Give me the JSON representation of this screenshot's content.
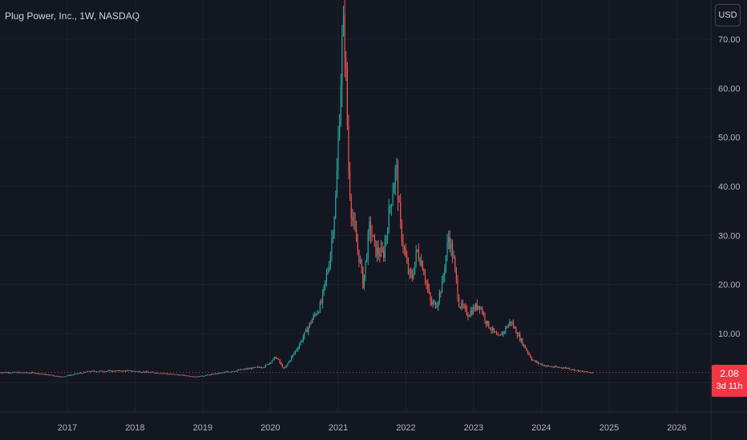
{
  "header": {
    "title": "Plug Power, Inc., 1W, NASDAQ",
    "currency_button": "USD"
  },
  "last_price": {
    "price": "2.08",
    "countdown": "3d 11h",
    "color": "#f23645"
  },
  "colors": {
    "background": "#131722",
    "up": "#26a69a",
    "down": "#ef5350",
    "grid": "#1e222d",
    "text": "#b2b5be"
  },
  "chart_data": {
    "type": "candlestick",
    "title": "Plug Power, Inc., 1W, NASDAQ",
    "interval": "1W",
    "currency": "USD",
    "ylim": [
      -6,
      78
    ],
    "y_ticks": [
      "10.00",
      "20.00",
      "30.00",
      "40.00",
      "50.00",
      "60.00",
      "70.00"
    ],
    "x_ticks": [
      "2017",
      "2018",
      "2019",
      "2020",
      "2021",
      "2022",
      "2023",
      "2024",
      "2025",
      "2026"
    ],
    "grid": true,
    "price_path": [
      [
        "2016-01-01",
        2.1
      ],
      [
        "2016-07-01",
        2.0
      ],
      [
        "2016-12-01",
        1.2
      ],
      [
        "2017-05-01",
        2.3
      ],
      [
        "2017-12-01",
        2.4
      ],
      [
        "2018-06-01",
        1.9
      ],
      [
        "2018-12-01",
        1.2
      ],
      [
        "2019-06-01",
        2.3
      ],
      [
        "2019-12-01",
        3.3
      ],
      [
        "2020-02-01",
        5.2
      ],
      [
        "2020-03-15",
        2.7
      ],
      [
        "2020-06-01",
        7.5
      ],
      [
        "2020-08-15",
        13.0
      ],
      [
        "2020-10-01",
        16.0
      ],
      [
        "2020-11-15",
        25.0
      ],
      [
        "2020-12-20",
        38.0
      ],
      [
        "2021-01-15",
        62.0
      ],
      [
        "2021-01-26",
        73.0
      ],
      [
        "2021-02-08",
        68.0
      ],
      [
        "2021-02-25",
        44.0
      ],
      [
        "2021-03-15",
        34.0
      ],
      [
        "2021-05-01",
        24.0
      ],
      [
        "2021-05-15",
        20.0
      ],
      [
        "2021-06-20",
        32.0
      ],
      [
        "2021-07-20",
        27.0
      ],
      [
        "2021-09-01",
        26.0
      ],
      [
        "2021-10-15",
        38.0
      ],
      [
        "2021-11-10",
        44.0
      ],
      [
        "2021-12-01",
        32.0
      ],
      [
        "2022-01-10",
        23.0
      ],
      [
        "2022-02-01",
        21.0
      ],
      [
        "2022-03-01",
        27.0
      ],
      [
        "2022-04-01",
        24.0
      ],
      [
        "2022-05-15",
        16.0
      ],
      [
        "2022-06-15",
        16.0
      ],
      [
        "2022-07-15",
        20.0
      ],
      [
        "2022-08-20",
        30.0
      ],
      [
        "2022-09-15",
        25.0
      ],
      [
        "2022-10-15",
        16.0
      ],
      [
        "2022-12-01",
        14.0
      ],
      [
        "2023-02-01",
        16.0
      ],
      [
        "2023-03-15",
        12.0
      ],
      [
        "2023-05-15",
        9.0
      ],
      [
        "2023-07-20",
        12.5
      ],
      [
        "2023-09-15",
        8.5
      ],
      [
        "2023-11-15",
        4.5
      ],
      [
        "2024-01-15",
        3.5
      ],
      [
        "2024-03-01",
        3.2
      ],
      [
        "2024-05-15",
        3.0
      ],
      [
        "2024-07-15",
        2.4
      ],
      [
        "2024-09-15",
        2.1
      ],
      [
        "2024-10-05",
        2.08
      ]
    ],
    "last_price": 2.08
  }
}
